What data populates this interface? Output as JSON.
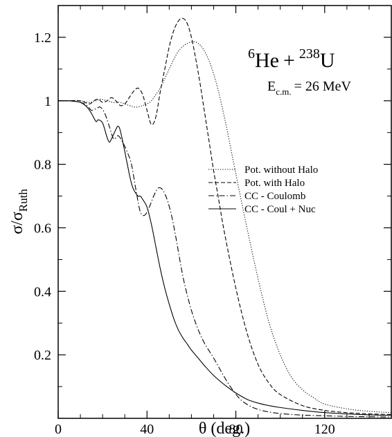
{
  "chart_data": {
    "type": "line",
    "title": "",
    "annotation": {
      "mass_a": "6",
      "elem_a": "He",
      "plus": "+",
      "mass_b": "238",
      "elem_b": "U",
      "energy_label": "E",
      "energy_sub": "c.m.",
      "energy_value": "= 26 MeV"
    },
    "xlabel": "θ (deg.)",
    "ylabel_main": "σ/σ",
    "ylabel_sub": "Ruth",
    "xlim": [
      0,
      150
    ],
    "ylim": [
      0,
      1.3
    ],
    "xticks": [
      0,
      40,
      80,
      120
    ],
    "xtick_labels": [
      "0",
      "40",
      "80",
      "120"
    ],
    "yticks": [
      0.2,
      0.4,
      0.6,
      0.8,
      1.0,
      1.2
    ],
    "ytick_labels": [
      "0.2",
      "0.4",
      "0.6",
      "0.8",
      "1",
      "1.2"
    ],
    "grid": false,
    "legend_position": "middle-right",
    "series": [
      {
        "name": "Pot. without Halo",
        "dash": "dotted",
        "x": [
          0,
          5,
          10,
          14,
          17,
          19,
          22,
          25,
          28,
          32,
          35,
          38,
          40,
          42,
          44,
          46,
          48,
          50,
          52,
          54,
          56,
          58,
          60,
          62,
          64,
          66,
          68,
          70,
          72,
          74,
          76,
          78,
          80,
          85,
          90,
          95,
          100,
          105,
          110,
          115,
          120,
          130,
          140,
          150
        ],
        "y": [
          1.0,
          1.0,
          1.0,
          0.995,
          1.0,
          1.005,
          1.0,
          0.995,
          0.995,
          0.985,
          0.98,
          0.985,
          0.99,
          1.0,
          1.02,
          1.04,
          1.07,
          1.1,
          1.13,
          1.155,
          1.17,
          1.18,
          1.185,
          1.185,
          1.175,
          1.155,
          1.125,
          1.085,
          1.035,
          0.975,
          0.91,
          0.84,
          0.77,
          0.6,
          0.44,
          0.3,
          0.2,
          0.13,
          0.09,
          0.065,
          0.045,
          0.03,
          0.022,
          0.018
        ]
      },
      {
        "name": "Pot. with Halo",
        "dash": "dashed",
        "x": [
          0,
          5,
          10,
          14,
          16,
          18,
          20,
          22,
          24,
          26,
          28,
          30,
          32,
          34,
          36,
          38,
          40,
          42,
          44,
          46,
          48,
          50,
          52,
          54,
          56,
          58,
          60,
          62,
          64,
          66,
          68,
          70,
          72,
          75,
          80,
          85,
          90,
          95,
          100,
          110,
          120,
          130,
          140,
          150
        ],
        "y": [
          1.0,
          1.0,
          1.0,
          0.99,
          1.0,
          1.005,
          0.995,
          1.0,
          1.01,
          1.0,
          0.985,
          0.99,
          1.01,
          1.03,
          1.04,
          1.02,
          0.97,
          0.925,
          0.95,
          1.03,
          1.1,
          1.17,
          1.22,
          1.25,
          1.26,
          1.245,
          1.2,
          1.13,
          1.05,
          0.96,
          0.87,
          0.78,
          0.7,
          0.58,
          0.41,
          0.27,
          0.17,
          0.11,
          0.075,
          0.04,
          0.025,
          0.018,
          0.014,
          0.012
        ]
      },
      {
        "name": "CC - Coulomb",
        "dash": "dashdot",
        "x": [
          0,
          5,
          10,
          13,
          15,
          17,
          19,
          21,
          23,
          25,
          27,
          29,
          31,
          33,
          35,
          37,
          39,
          41,
          43,
          45,
          47,
          49,
          51,
          53,
          55,
          57,
          60,
          63,
          66,
          70,
          74,
          78,
          82,
          86,
          90,
          95,
          100,
          110,
          120,
          130,
          140,
          150
        ],
        "y": [
          1.0,
          1.0,
          0.995,
          0.985,
          0.97,
          0.975,
          0.98,
          0.96,
          0.92,
          0.88,
          0.89,
          0.87,
          0.84,
          0.8,
          0.72,
          0.65,
          0.64,
          0.665,
          0.7,
          0.725,
          0.72,
          0.69,
          0.64,
          0.57,
          0.49,
          0.42,
          0.34,
          0.28,
          0.235,
          0.19,
          0.14,
          0.095,
          0.06,
          0.04,
          0.028,
          0.02,
          0.015,
          0.01,
          0.008,
          0.006,
          0.005,
          0.004
        ]
      },
      {
        "name": "CC - Coul + Nuc",
        "dash": "solid",
        "x": [
          0,
          5,
          10,
          13,
          15,
          17,
          18,
          20,
          22,
          23,
          24,
          26,
          27,
          28,
          30,
          32,
          33,
          34,
          36,
          37,
          38,
          40,
          42,
          44,
          46,
          48,
          50,
          52,
          54,
          56,
          58,
          60,
          63,
          66,
          70,
          75,
          80,
          85,
          90,
          95,
          100,
          110,
          120,
          130,
          140,
          150
        ],
        "y": [
          1.0,
          1.0,
          0.995,
          0.98,
          0.96,
          0.935,
          0.94,
          0.93,
          0.885,
          0.87,
          0.88,
          0.91,
          0.92,
          0.905,
          0.84,
          0.77,
          0.74,
          0.72,
          0.7,
          0.7,
          0.69,
          0.665,
          0.61,
          0.54,
          0.47,
          0.41,
          0.36,
          0.315,
          0.28,
          0.255,
          0.235,
          0.215,
          0.19,
          0.165,
          0.135,
          0.105,
          0.08,
          0.06,
          0.048,
          0.04,
          0.034,
          0.025,
          0.018,
          0.014,
          0.011,
          0.009
        ]
      }
    ]
  }
}
